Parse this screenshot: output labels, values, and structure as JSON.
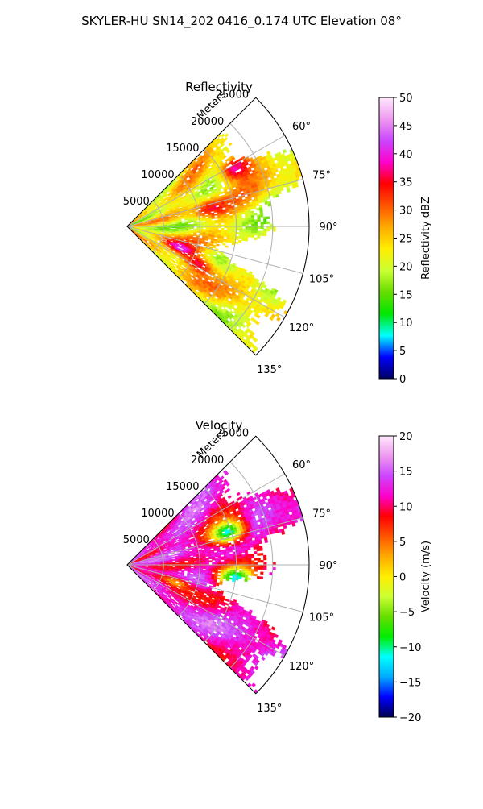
{
  "suptitle": "SKYLER-HU  SN14_202  0416_0.174 UTC Elevation 08°",
  "chart_data": [
    {
      "type": "heatmap",
      "subtype": "polar-sector",
      "title": "Reflectivity",
      "radial_label": "Meters",
      "radial_ticks": [
        5000,
        10000,
        15000,
        20000,
        25000
      ],
      "radial_tick_labels": [
        "5000",
        "10000",
        "15000",
        "20000",
        "25000"
      ],
      "rlim": [
        0,
        25000
      ],
      "angle_range_deg": [
        45,
        135
      ],
      "angle_ticks_deg": [
        60,
        75,
        90,
        105,
        120,
        135
      ],
      "angle_tick_labels": [
        "60°",
        "75°",
        "90°",
        "105°",
        "120°",
        "135°"
      ],
      "grid": true,
      "colorbar": {
        "label": "Reflectivity dBZ",
        "range": [
          0,
          50
        ],
        "ticks": [
          0,
          5,
          10,
          15,
          20,
          25,
          30,
          35,
          40,
          45,
          50
        ],
        "tick_labels": [
          "0",
          "5",
          "10",
          "15",
          "20",
          "25",
          "30",
          "35",
          "40",
          "45",
          "50"
        ],
        "stops": [
          "#000060",
          "#0000ff",
          "#00ffff",
          "#00e600",
          "#66dd00",
          "#ccff33",
          "#ffee00",
          "#ffaa00",
          "#ff5500",
          "#ff0000",
          "#ff00cc",
          "#cc44ff",
          "#ee99ee",
          "#ffe8ff"
        ]
      },
      "dominant_range": [
        15,
        30
      ],
      "features": [
        {
          "az_deg": 62,
          "range_m": 17000,
          "value": 38
        },
        {
          "az_deg": 78,
          "range_m": 12000,
          "value": 35
        },
        {
          "az_deg": 112,
          "range_m": 8000,
          "value": 42
        },
        {
          "az_deg": 118,
          "range_m": 11000,
          "value": 36
        }
      ]
    },
    {
      "type": "heatmap",
      "subtype": "polar-sector",
      "title": "Velocity",
      "radial_label": "Meters",
      "radial_ticks": [
        5000,
        10000,
        15000,
        20000,
        25000
      ],
      "radial_tick_labels": [
        "5000",
        "10000",
        "15000",
        "20000",
        "25000"
      ],
      "rlim": [
        0,
        25000
      ],
      "angle_range_deg": [
        45,
        135
      ],
      "angle_ticks_deg": [
        60,
        75,
        90,
        105,
        120,
        135
      ],
      "angle_tick_labels": [
        "60°",
        "75°",
        "90°",
        "105°",
        "120°",
        "135°"
      ],
      "grid": true,
      "colorbar": {
        "label": "Velocity (m/s)",
        "range": [
          -20,
          20
        ],
        "ticks": [
          -20,
          -15,
          -10,
          -5,
          0,
          5,
          10,
          15,
          20
        ],
        "tick_labels": [
          "−20",
          "−15",
          "−10",
          "−5",
          "0",
          "5",
          "10",
          "15",
          "20"
        ],
        "stops": [
          "#000050",
          "#0000ff",
          "#00aaff",
          "#00ffff",
          "#00ee00",
          "#66dd00",
          "#ccff33",
          "#ffee00",
          "#ffaa00",
          "#ff5500",
          "#ff0000",
          "#ff00cc",
          "#cc44ff",
          "#ee99ee",
          "#ffe8ff"
        ]
      },
      "dominant_range": [
        8,
        16
      ],
      "features": [
        {
          "az_deg": 72,
          "range_m": 14500,
          "value": -11
        },
        {
          "az_deg": 97,
          "range_m": 15000,
          "value": -12
        },
        {
          "az_deg": 110,
          "range_m": 7000,
          "value": 3
        }
      ]
    }
  ]
}
